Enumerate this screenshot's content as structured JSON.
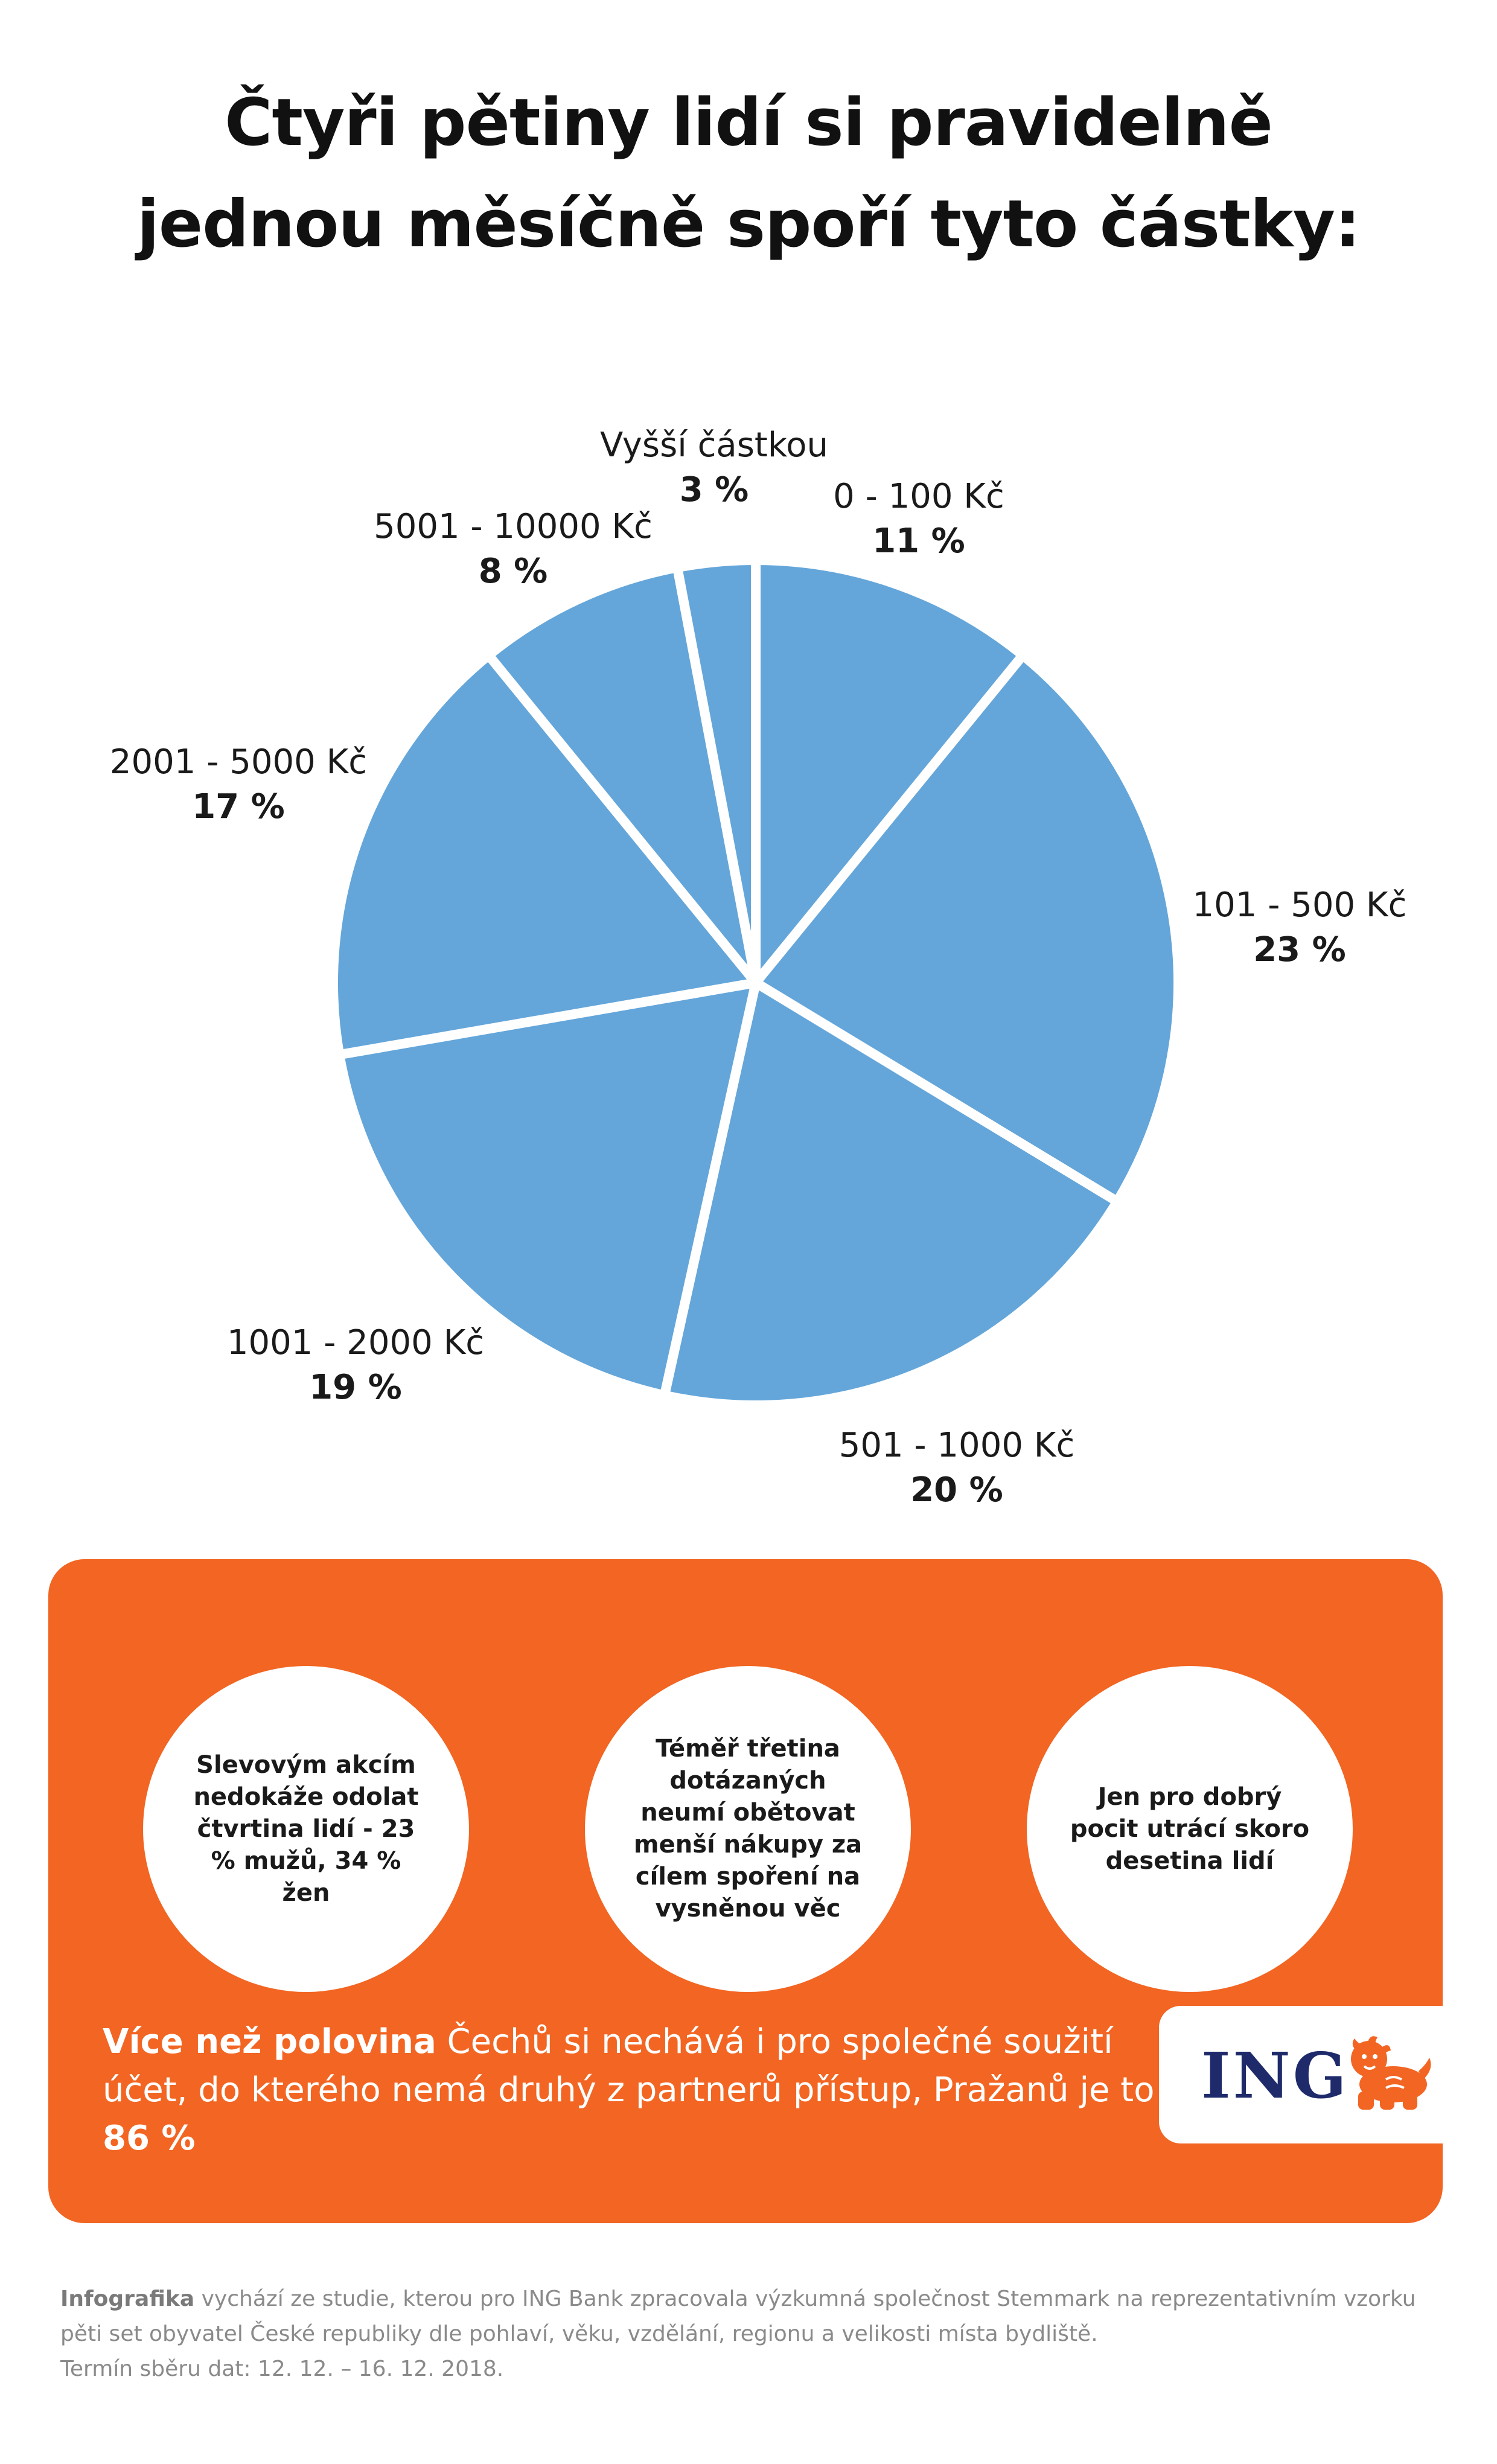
{
  "title": {
    "line1": "Čtyři pětiny lidí si pravidelně",
    "line2": "jednou měsíčně spoří tyto částky:"
  },
  "colors": {
    "slice_fill": "#64a6da",
    "slice_separator": "#ffffff",
    "panel_bg": "#f26522",
    "logo_text": "#1f2a6b",
    "footer_text": "#8a8a8a"
  },
  "chart_data": {
    "type": "pie",
    "start": "12 o'clock, clockwise",
    "categories": [
      "0 - 100 Kč",
      "101 - 500 Kč",
      "501 - 1000 Kč",
      "1001 - 2000 Kč",
      "2001 - 5000 Kč",
      "5001 - 10000 Kč",
      "Vyšší částkou"
    ],
    "values": [
      11,
      23,
      20,
      19,
      17,
      8,
      3
    ],
    "value_labels": [
      "11 %",
      "23 %",
      "20 %",
      "19 %",
      "17 %",
      "8 %",
      "3 %"
    ],
    "unit": "%"
  },
  "panel": {
    "circles": [
      {
        "text": "Slevovým akcím nedokáže odolat čtvrtina lidí - 23 % mužů, 34 % žen"
      },
      {
        "text": "Téměř třetina dotázaných neumí obětovat menší nákupy za cílem spoření na vysněnou věc"
      },
      {
        "text": "Jen pro dobrý pocit utrácí skoro desetina lidí"
      }
    ],
    "statement": {
      "bold_start": "Více než polovina",
      "middle": " Čechů si nechává i pro společné soužití účet, do kterého nemá druhý z partnerů přístup, Pražanů je to ",
      "bold_end": "86 %"
    },
    "logo": {
      "text": "ING",
      "icon": "lion-icon"
    }
  },
  "footer": {
    "bold": "Infografika",
    "line1_rest": " vychází ze studie, kterou pro ING Bank zpracovala výzkumná společnost Stemmark na reprezentativním vzorku",
    "line2": "pěti set obyvatel České republiky dle pohlaví, věku, vzdělání, regionu a velikosti místa bydliště.",
    "line3": "Termín sběru dat: 12. 12. – 16. 12. 2018."
  }
}
